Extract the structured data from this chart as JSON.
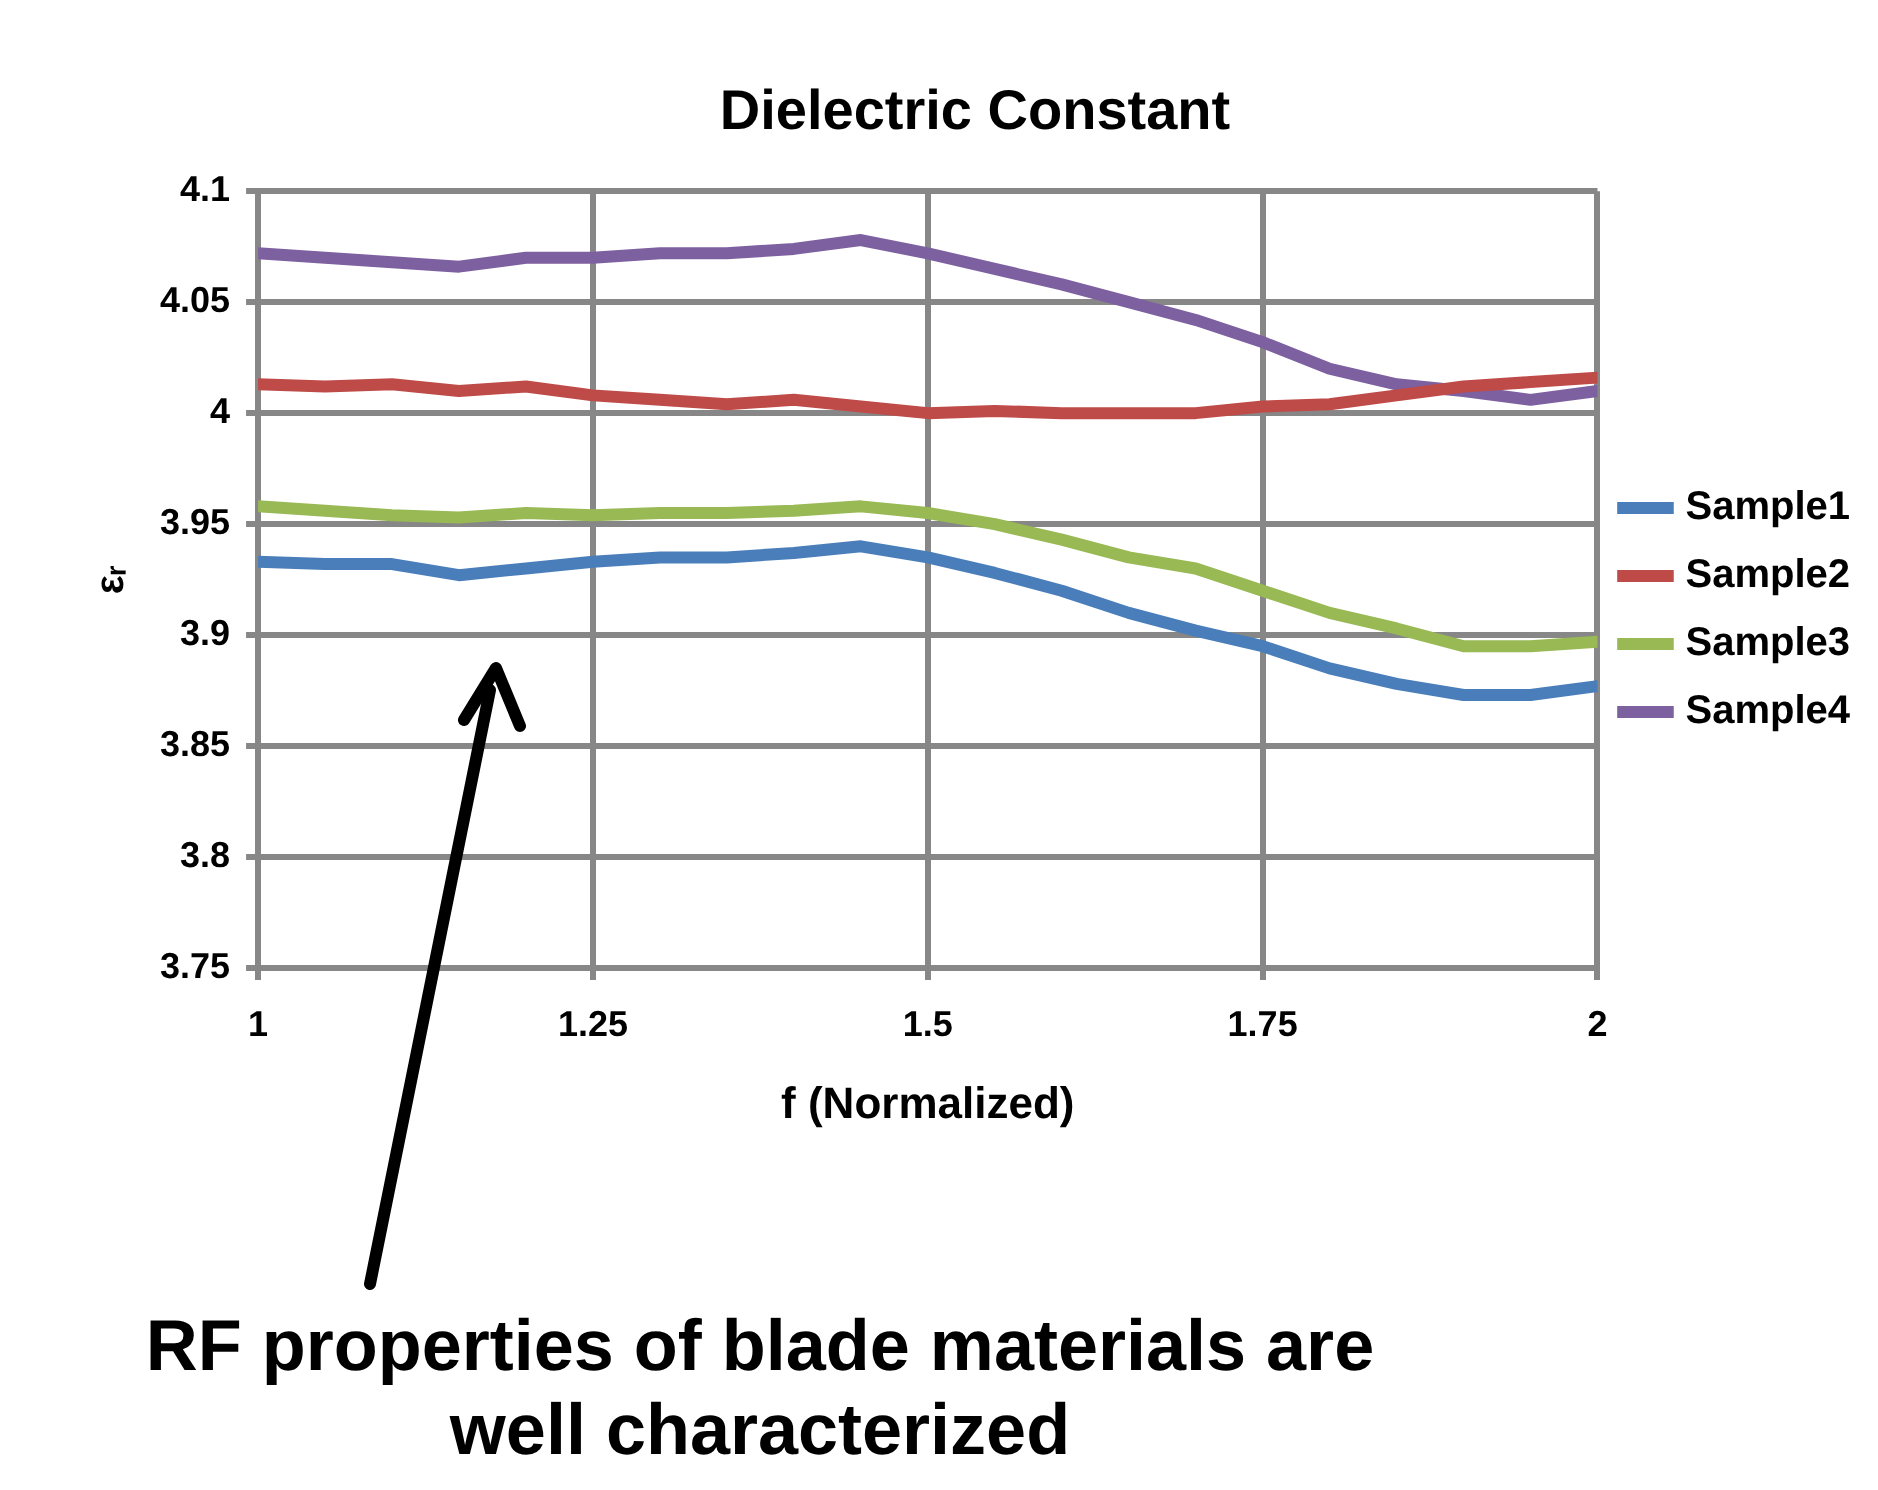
{
  "chart_data": {
    "type": "line",
    "title": "Dielectric Constant",
    "xlabel": "f (Normalized)",
    "ylabel": "εᵣ",
    "x": [
      1,
      1.05,
      1.1,
      1.15,
      1.2,
      1.25,
      1.3,
      1.35,
      1.4,
      1.45,
      1.5,
      1.55,
      1.6,
      1.65,
      1.7,
      1.75,
      1.8,
      1.85,
      1.9,
      1.95,
      2
    ],
    "series": [
      {
        "name": "Sample1",
        "color": "#4a7ebb",
        "values": [
          3.933,
          3.932,
          3.932,
          3.927,
          3.93,
          3.933,
          3.935,
          3.935,
          3.937,
          3.94,
          3.935,
          3.928,
          3.92,
          3.91,
          3.902,
          3.895,
          3.885,
          3.878,
          3.873,
          3.873,
          3.877
        ]
      },
      {
        "name": "Sample2",
        "color": "#be4b48",
        "values": [
          4.013,
          4.012,
          4.013,
          4.01,
          4.012,
          4.008,
          4.006,
          4.004,
          4.006,
          4.003,
          4.0,
          4.001,
          4.0,
          4.0,
          4.0,
          4.003,
          4.004,
          4.008,
          4.012,
          4.014,
          4.016
        ]
      },
      {
        "name": "Sample3",
        "color": "#98b954",
        "values": [
          3.958,
          3.956,
          3.954,
          3.953,
          3.955,
          3.954,
          3.955,
          3.955,
          3.956,
          3.958,
          3.955,
          3.95,
          3.943,
          3.935,
          3.93,
          3.92,
          3.91,
          3.903,
          3.895,
          3.895,
          3.897
        ]
      },
      {
        "name": "Sample4",
        "color": "#7d60a0",
        "values": [
          4.072,
          4.07,
          4.068,
          4.066,
          4.07,
          4.07,
          4.072,
          4.072,
          4.074,
          4.078,
          4.072,
          4.065,
          4.058,
          4.05,
          4.042,
          4.032,
          4.02,
          4.013,
          4.01,
          4.006,
          4.01
        ]
      }
    ],
    "xlim": [
      1,
      2
    ],
    "xticks": [
      1,
      1.25,
      1.5,
      1.75,
      2
    ],
    "ylim": [
      3.75,
      4.1
    ],
    "yticks": [
      3.75,
      3.8,
      3.85,
      3.9,
      3.95,
      4,
      4.05,
      4.1
    ],
    "grid": true,
    "legend": "right",
    "annotations": [
      "RF properties of blade materials are well characterized"
    ]
  }
}
